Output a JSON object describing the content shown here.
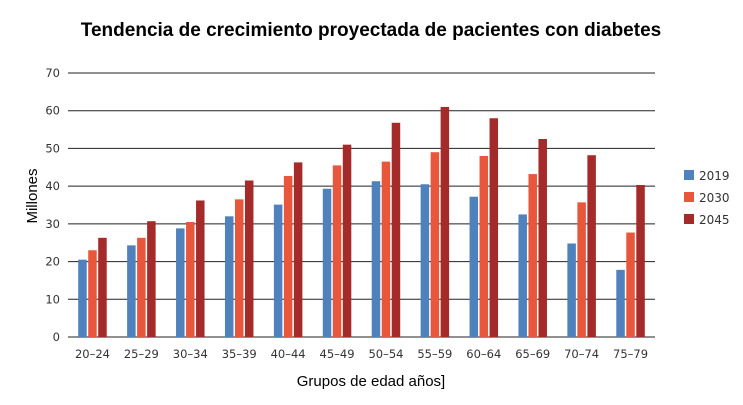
{
  "chart_data": {
    "type": "bar",
    "title": "Tendencia de crecimiento proyectada de pacientes con diabetes",
    "xlabel": "Grupos de edad años]",
    "ylabel": "Millones",
    "ylim": [
      0,
      70
    ],
    "yticks": [
      "0",
      "10",
      "20",
      "30",
      "40",
      "50",
      "60",
      "70"
    ],
    "grid": true,
    "legend_position": "right",
    "categories": [
      "20–24",
      "25–29",
      "30–34",
      "35–39",
      "40–44",
      "45–49",
      "50–54",
      "55–59",
      "60–64",
      "65–69",
      "70–74",
      "75–79"
    ],
    "series": [
      {
        "name": "2019",
        "color": "#4f81bd",
        "values": [
          20.5,
          24.3,
          28.8,
          32.0,
          35.1,
          39.3,
          41.3,
          40.5,
          37.2,
          32.5,
          24.8,
          17.8
        ]
      },
      {
        "name": "2030",
        "color": "#e8573c",
        "values": [
          23.0,
          26.3,
          30.5,
          36.5,
          42.7,
          45.5,
          46.5,
          49.0,
          48.0,
          43.2,
          35.7,
          27.7
        ]
      },
      {
        "name": "2045",
        "color": "#a52a2a",
        "values": [
          26.3,
          30.7,
          36.2,
          41.5,
          46.3,
          51.0,
          56.8,
          61.0,
          58.0,
          52.5,
          48.2,
          40.3
        ]
      }
    ]
  }
}
